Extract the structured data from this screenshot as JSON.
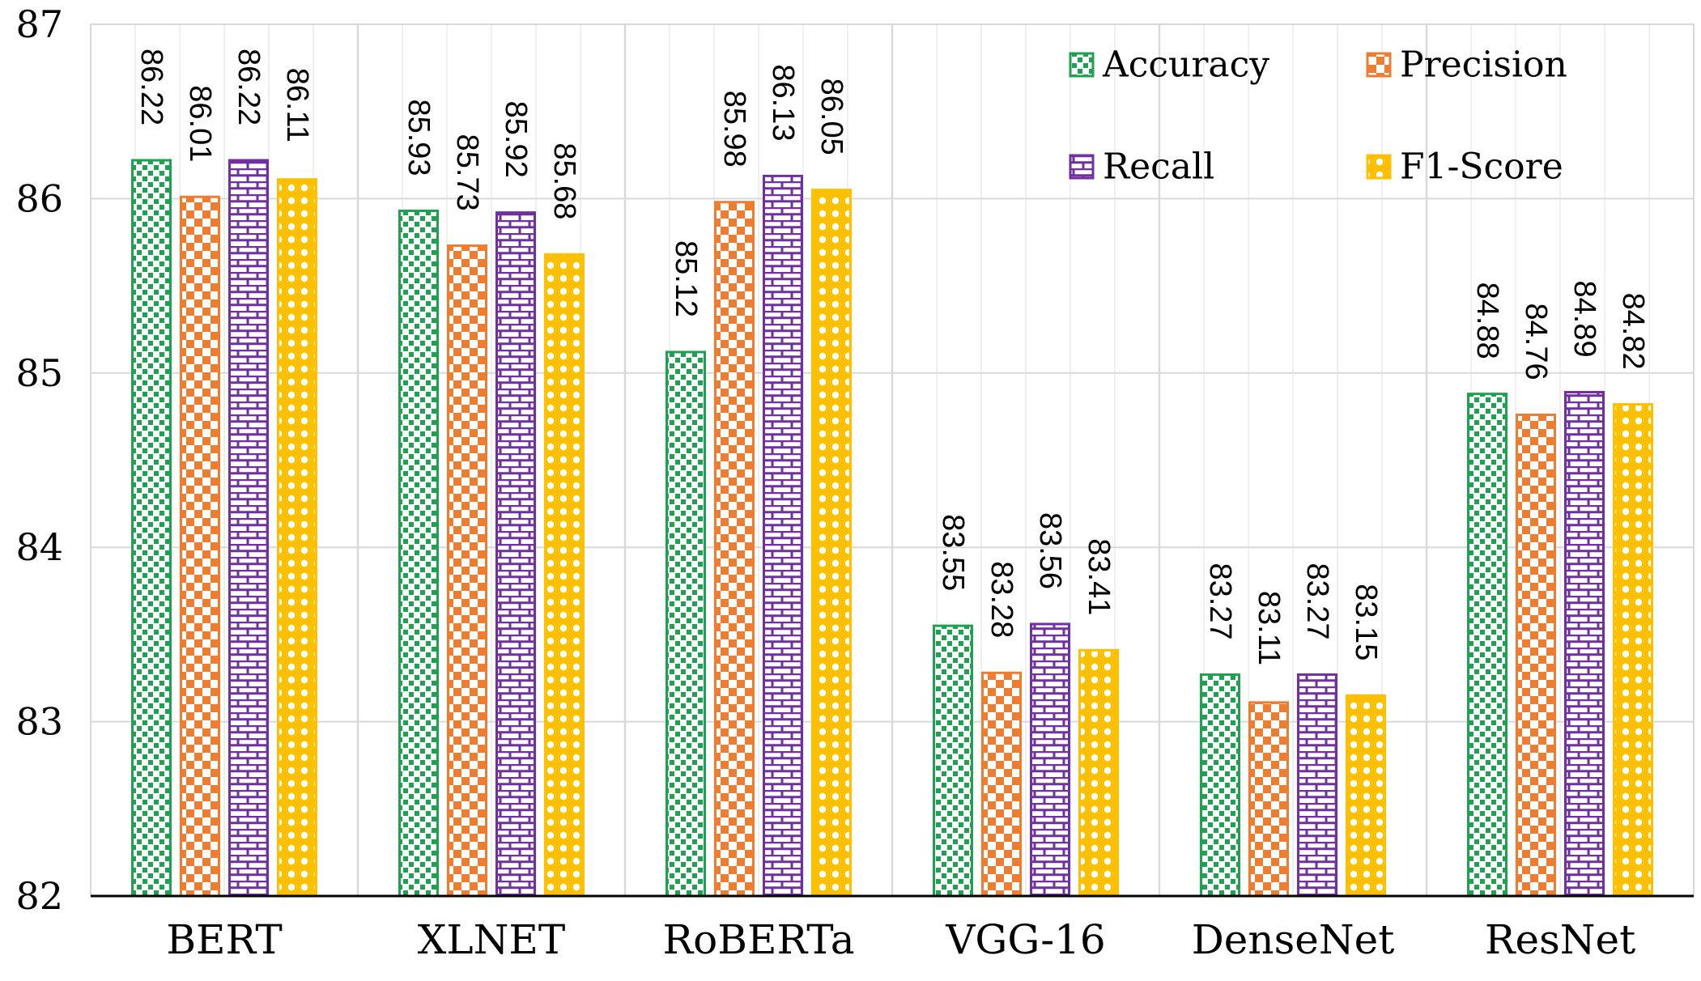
{
  "chart_data": {
    "type": "bar",
    "title": "",
    "xlabel": "",
    "ylabel": "",
    "ylim": [
      82,
      87
    ],
    "yticks": [
      82,
      83,
      84,
      85,
      86,
      87
    ],
    "grid": true,
    "legend_position": "top-right",
    "categories": [
      "BERT",
      "XLNET",
      "RoBERTa",
      "VGG-16",
      "DenseNet",
      "ResNet"
    ],
    "series": [
      {
        "name": "Accuracy",
        "color": "#1ea150",
        "pattern": "dots",
        "values": [
          86.22,
          85.93,
          85.12,
          83.55,
          83.27,
          84.88
        ],
        "labels": [
          "86.22",
          "85.93",
          "85.12",
          "83.55",
          "83.27",
          "84.88"
        ]
      },
      {
        "name": "Precision",
        "color": "#ed7d31",
        "pattern": "checker",
        "values": [
          86.01,
          85.73,
          85.98,
          83.28,
          83.11,
          84.76
        ],
        "labels": [
          "86.01",
          "85.73",
          "85.98",
          "83.28",
          "83.11",
          "84.76"
        ]
      },
      {
        "name": "Recall",
        "color": "#7030a0",
        "pattern": "brick",
        "values": [
          86.22,
          85.92,
          86.13,
          83.56,
          83.27,
          84.89
        ],
        "labels": [
          "86.22",
          "85.92",
          "86.13",
          "83.56",
          "83.27",
          "84.89"
        ]
      },
      {
        "name": "F1-Score",
        "color": "#ffc000",
        "pattern": "circles",
        "values": [
          86.11,
          85.68,
          86.05,
          83.41,
          83.15,
          84.82
        ],
        "labels": [
          "86.11",
          "85.68",
          "86.05",
          "83.41",
          "83.15",
          "84.82"
        ]
      }
    ]
  }
}
